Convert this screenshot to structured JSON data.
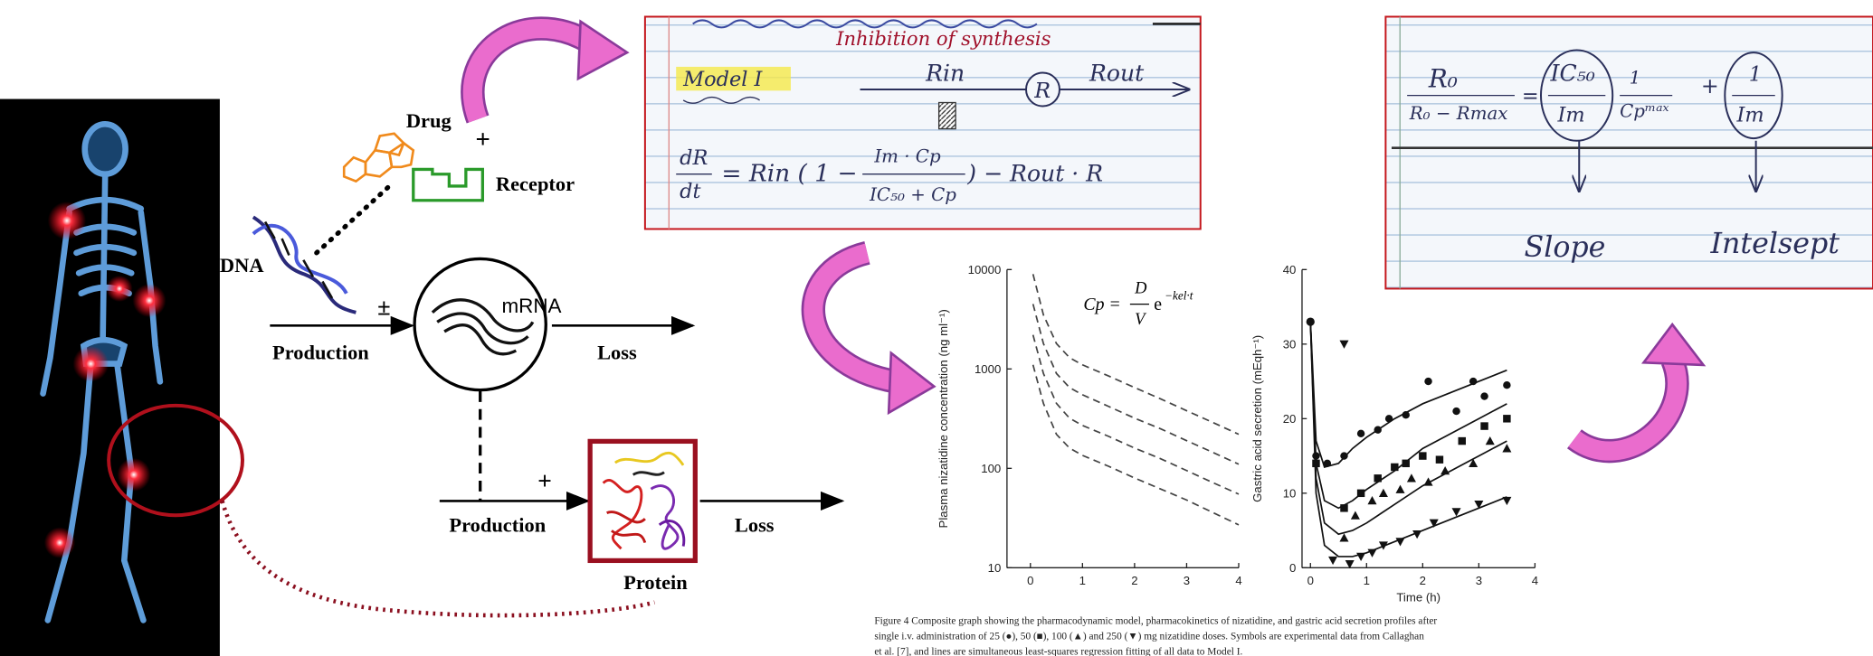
{
  "diagram": {
    "drug": "Drug",
    "plus_drug": "+",
    "receptor": "Receptor",
    "dna": "DNA",
    "plus_minus": "±",
    "mrna": "mRNA",
    "production_1": "Production",
    "loss_1": "Loss",
    "plus_protein": "+",
    "production_2": "Production",
    "loss_2": "Loss",
    "protein": "Protein"
  },
  "note_1": {
    "title": "Inhibition of synthesis",
    "model": "Model I",
    "rin": "Rin",
    "r": "R",
    "rout": "Rout",
    "eq_lhs_num": "dR",
    "eq_lhs_den": "dt",
    "eq_rin": "= Rin ( 1 −",
    "eq_frac_num": "Im · Cp",
    "eq_frac_den": "IC₅₀ + Cp",
    "eq_tail": ") − Rout · R"
  },
  "note_2": {
    "lhs_num": "R₀",
    "lhs_den": "R₀ − Rmax",
    "eq": "=",
    "slope_num": "IC₅₀",
    "slope_den": "Im",
    "cp_num": "1",
    "cp_den": "Cpᵐᵃˣ",
    "plus": "+",
    "int_num": "1",
    "int_den": "Im",
    "slope": "Slope",
    "intercept": "Intelsept"
  },
  "figure": {
    "plot_1": {
      "type": "line",
      "ylabel": "Plasma nizatidine concentration (ng ml⁻¹)",
      "formula": {
        "lhs": "Cp =",
        "num": "D",
        "den": "V",
        "base": "e",
        "exponent": "−kel·t"
      },
      "log_y": true,
      "xlim": [
        -0.45,
        4
      ],
      "ylim": [
        10,
        10000
      ],
      "xticks": [
        0,
        1,
        2,
        3,
        4
      ],
      "yticks": [
        10,
        100,
        1000,
        10000
      ],
      "x": [
        0.05,
        0.25,
        0.5,
        0.75,
        1,
        1.5,
        2,
        2.5,
        3,
        3.5,
        4
      ],
      "series": [
        {
          "color": "#444444",
          "values": [
            9000,
            3500,
            1800,
            1300,
            1100,
            850,
            650,
            500,
            380,
            290,
            220
          ]
        },
        {
          "color": "#444444",
          "values": [
            4500,
            1800,
            900,
            650,
            550,
            420,
            320,
            250,
            190,
            145,
            110
          ]
        },
        {
          "color": "#444444",
          "values": [
            2200,
            900,
            450,
            320,
            270,
            210,
            160,
            125,
            95,
            72,
            55
          ]
        },
        {
          "color": "#444444",
          "values": [
            1100,
            450,
            220,
            160,
            135,
            105,
            80,
            62,
            48,
            36,
            27
          ]
        }
      ]
    },
    "plot_2": {
      "type": "scatter",
      "xlabel": "Time (h)",
      "ylabel": "Gastric acid secretion (mEqh⁻¹)",
      "xlim": [
        -0.15,
        4
      ],
      "ylim": [
        0,
        40
      ],
      "xticks": [
        0,
        1,
        2,
        3,
        4
      ],
      "yticks": [
        0,
        10,
        20,
        30,
        40
      ],
      "start": [
        0,
        33
      ],
      "fit_x": [
        0,
        0.1,
        0.25,
        0.5,
        0.75,
        1,
        1.5,
        2,
        2.5,
        3,
        3.5
      ],
      "series": [
        {
          "marker": "circle",
          "color": "#111111",
          "points_x": [
            0.1,
            0.3,
            0.6,
            0.9,
            1.2,
            1.4,
            1.7,
            2.1,
            2.6,
            2.9,
            3.1,
            3.5
          ],
          "points_y": [
            15,
            14,
            15,
            18,
            18.5,
            20,
            20.5,
            25,
            21,
            25,
            23,
            24.5
          ],
          "fit_y": [
            33,
            17,
            13.5,
            14,
            16,
            17.5,
            20,
            22,
            23.5,
            25,
            26.5
          ]
        },
        {
          "marker": "square",
          "color": "#111111",
          "points_x": [
            0.1,
            0.6,
            0.9,
            1.2,
            1.5,
            1.7,
            2.0,
            2.3,
            2.7,
            3.1,
            3.5
          ],
          "points_y": [
            14,
            8,
            10,
            12,
            13.5,
            14,
            15,
            14.5,
            17,
            19,
            20
          ]
        },
        {
          "marker": "triangle-up",
          "color": "#111111",
          "points_x": [
            0.6,
            0.8,
            1.1,
            1.3,
            1.6,
            1.8,
            2.1,
            2.4,
            2.9,
            3.2,
            3.5
          ],
          "points_y": [
            4,
            7,
            9,
            10,
            10.5,
            12,
            11.5,
            13,
            14,
            17,
            16
          ]
        },
        {
          "marker": "triangle-down",
          "color": "#111111",
          "points_x": [
            0.4,
            0.6,
            0.7,
            0.9,
            1.1,
            1.3,
            1.6,
            1.9,
            2.2,
            2.6,
            3.0,
            3.5
          ],
          "points_y": [
            1,
            30,
            0.5,
            1.5,
            2,
            3,
            3.5,
            4.5,
            6,
            7.5,
            8.5,
            9
          ]
        }
      ],
      "fits": [
        [
          33,
          17,
          13.5,
          14,
          16,
          17.5,
          20,
          22,
          23.5,
          25,
          26.5
        ],
        [
          33,
          14,
          9,
          8,
          9,
          10.5,
          13,
          16,
          18,
          20,
          22
        ],
        [
          33,
          12,
          6,
          4.5,
          5,
          6,
          8.5,
          11,
          13,
          15,
          17
        ],
        [
          33,
          10,
          3,
          1.5,
          1.5,
          2,
          3.5,
          5,
          6.5,
          8,
          9.5
        ]
      ]
    },
    "caption": [
      "Figure 4  Composite graph showing the pharmacodynamic model, pharmacokinetics of nizatidine, and gastric acid secretion profiles after",
      "single i.v. administration of 25 (●), 50 (■), 100 (▲) and 250 (▼) mg nizatidine doses. Symbols are experimental data from Callaghan",
      "et al. [7], and lines are simultaneous least-squares regression fitting of all data to Model I."
    ]
  }
}
